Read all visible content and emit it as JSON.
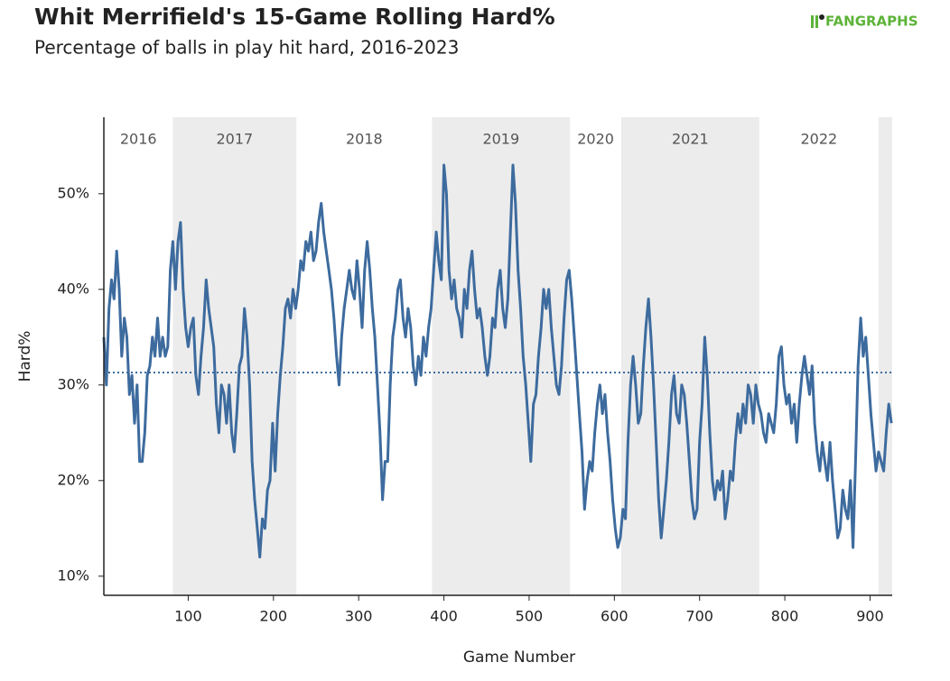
{
  "chart_data": {
    "type": "line",
    "title": "Whit Merrifield's 15-Game Rolling Hard%",
    "subtitle": "Percentage of balls in play hit hard, 2016-2023",
    "logo": "FANGRAPHS",
    "xlabel": "Game Number",
    "ylabel": "Hard%",
    "xlim": [
      1,
      926
    ],
    "ylim": [
      8,
      58
    ],
    "xticks": [
      100,
      200,
      300,
      400,
      500,
      600,
      700,
      800,
      900
    ],
    "yticks": [
      {
        "value": 10,
        "label": "10%"
      },
      {
        "value": 20,
        "label": "20%"
      },
      {
        "value": 30,
        "label": "30%"
      },
      {
        "value": 40,
        "label": "40%"
      },
      {
        "value": 50,
        "label": "50%"
      }
    ],
    "reference_line": {
      "value": 31.3,
      "style": "dotted",
      "color": "#3d6b9e"
    },
    "seasons": [
      {
        "label": "2016",
        "start": 1,
        "end": 82,
        "shaded": false
      },
      {
        "label": "2017",
        "start": 82,
        "end": 227,
        "shaded": true
      },
      {
        "label": "2018",
        "start": 227,
        "end": 386,
        "shaded": false
      },
      {
        "label": "2019",
        "start": 386,
        "end": 548,
        "shaded": true
      },
      {
        "label": "2020",
        "start": 548,
        "end": 608,
        "shaded": false
      },
      {
        "label": "2021",
        "start": 608,
        "end": 770,
        "shaded": true
      },
      {
        "label": "2022",
        "start": 770,
        "end": 910,
        "shaded": false
      },
      {
        "label": null,
        "start": 910,
        "end": 926,
        "shaded": true
      }
    ],
    "x": [
      1,
      4,
      7,
      10,
      13,
      16,
      19,
      22,
      25,
      28,
      31,
      34,
      37,
      40,
      43,
      46,
      49,
      52,
      55,
      58,
      61,
      64,
      67,
      70,
      73,
      76,
      79,
      82,
      85,
      88,
      91,
      94,
      97,
      100,
      103,
      106,
      109,
      112,
      115,
      118,
      121,
      124,
      127,
      130,
      133,
      136,
      139,
      142,
      145,
      148,
      151,
      154,
      157,
      160,
      163,
      166,
      169,
      172,
      175,
      178,
      181,
      184,
      187,
      190,
      193,
      196,
      199,
      202,
      205,
      208,
      211,
      214,
      217,
      220,
      223,
      226,
      229,
      232,
      235,
      238,
      241,
      244,
      247,
      250,
      253,
      256,
      259,
      262,
      265,
      268,
      271,
      274,
      277,
      280,
      283,
      286,
      289,
      292,
      295,
      298,
      301,
      304,
      307,
      310,
      313,
      316,
      319,
      322,
      325,
      328,
      331,
      334,
      337,
      340,
      343,
      346,
      349,
      352,
      355,
      358,
      361,
      364,
      367,
      370,
      373,
      376,
      379,
      382,
      385,
      388,
      391,
      394,
      397,
      400,
      403,
      406,
      409,
      412,
      415,
      418,
      421,
      424,
      427,
      430,
      433,
      436,
      439,
      442,
      445,
      448,
      451,
      454,
      457,
      460,
      463,
      466,
      469,
      472,
      475,
      478,
      481,
      484,
      487,
      490,
      493,
      496,
      499,
      502,
      505,
      508,
      511,
      514,
      517,
      520,
      523,
      526,
      529,
      532,
      535,
      538,
      541,
      544,
      547,
      550,
      553,
      556,
      559,
      562,
      565,
      568,
      571,
      574,
      577,
      580,
      583,
      586,
      589,
      592,
      595,
      598,
      601,
      604,
      607,
      610,
      613,
      616,
      619,
      622,
      625,
      628,
      631,
      634,
      637,
      640,
      643,
      646,
      649,
      652,
      655,
      658,
      661,
      664,
      667,
      670,
      673,
      676,
      679,
      682,
      685,
      688,
      691,
      694,
      697,
      700,
      703,
      706,
      709,
      712,
      715,
      718,
      721,
      724,
      727,
      730,
      733,
      736,
      739,
      742,
      745,
      748,
      751,
      754,
      757,
      760,
      763,
      766,
      769,
      772,
      775,
      778,
      781,
      784,
      787,
      790,
      793,
      796,
      799,
      802,
      805,
      808,
      811,
      814,
      817,
      820,
      823,
      826,
      829,
      832,
      835,
      838,
      841,
      844,
      847,
      850,
      853,
      856,
      859,
      862,
      865,
      868,
      871,
      874,
      877,
      880,
      883,
      886,
      889,
      892,
      895,
      898,
      901,
      904,
      907,
      910,
      913,
      916,
      919,
      922,
      925
    ],
    "series": [
      {
        "name": "Hard%",
        "color": "#3d6b9e",
        "values": [
          35,
          30,
          38,
          41,
          39,
          44,
          40,
          33,
          37,
          35,
          29,
          31,
          26,
          30,
          22,
          22,
          25,
          31,
          32,
          35,
          33,
          37,
          33,
          35,
          33,
          34,
          42,
          45,
          40,
          45,
          47,
          40,
          36,
          34,
          36,
          37,
          31,
          29,
          33,
          36,
          41,
          38,
          36,
          34,
          28,
          25,
          30,
          29,
          26,
          30,
          25,
          23,
          27,
          32,
          33,
          38,
          35,
          30,
          22,
          18,
          15,
          12,
          16,
          15,
          19,
          20,
          26,
          21,
          27,
          31,
          34,
          38,
          39,
          37,
          40,
          38,
          40,
          43,
          42,
          45,
          44,
          46,
          43,
          44,
          47,
          49,
          46,
          44,
          42,
          40,
          37,
          33,
          30,
          35,
          38,
          40,
          42,
          40,
          39,
          43,
          40,
          36,
          42,
          45,
          42,
          38,
          35,
          30,
          25,
          18,
          22,
          22,
          30,
          35,
          37,
          40,
          41,
          37,
          35,
          38,
          36,
          32,
          30,
          33,
          31,
          35,
          33,
          36,
          38,
          42,
          46,
          43,
          41,
          53,
          50,
          42,
          39,
          41,
          38,
          37,
          35,
          40,
          38,
          42,
          44,
          40,
          37,
          38,
          36,
          33,
          31,
          33,
          37,
          36,
          40,
          42,
          38,
          36,
          39,
          46,
          53,
          49,
          42,
          38,
          33,
          30,
          26,
          22,
          28,
          29,
          33,
          36,
          40,
          38,
          40,
          36,
          33,
          30,
          29,
          32,
          37,
          41,
          42,
          39,
          35,
          31,
          27,
          23,
          17,
          20,
          22,
          21,
          25,
          28,
          30,
          27,
          29,
          25,
          22,
          18,
          15,
          13,
          14,
          17,
          16,
          24,
          30,
          33,
          30,
          26,
          27,
          32,
          36,
          39,
          35,
          30,
          24,
          18,
          14,
          17,
          20,
          24,
          29,
          31,
          27,
          26,
          30,
          29,
          26,
          22,
          18,
          16,
          17,
          24,
          28,
          35,
          31,
          25,
          20,
          18,
          20,
          19,
          21,
          16,
          18,
          21,
          20,
          24,
          27,
          25,
          28,
          26,
          30,
          29,
          26,
          30,
          28,
          27,
          25,
          24,
          27,
          26,
          25,
          28,
          33,
          34,
          30,
          28,
          29,
          26,
          28,
          24,
          28,
          31,
          33,
          31,
          29,
          32,
          26,
          23,
          21,
          24,
          22,
          20,
          24,
          20,
          17,
          14,
          15,
          19,
          17,
          16,
          20,
          13,
          22,
          32,
          37,
          33,
          35,
          31,
          27,
          24,
          21,
          23,
          22,
          21,
          25,
          28,
          26
        ]
      }
    ]
  }
}
